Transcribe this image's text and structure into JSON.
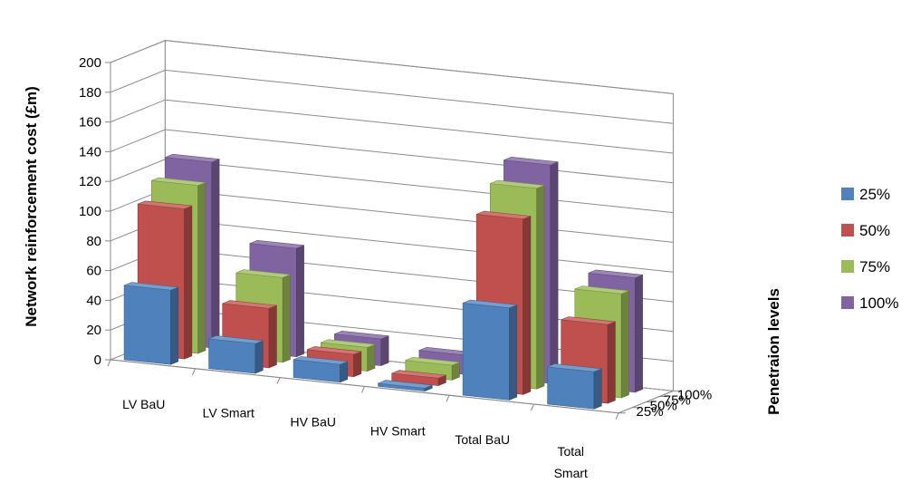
{
  "chart_data": {
    "type": "bar",
    "subtype": "3d-column",
    "title": "",
    "ylabel": "Network reinforcement cost (£m)",
    "zlabel": "Penetraion levels",
    "ylim": [
      0,
      200
    ],
    "yticks": [
      0,
      20,
      40,
      60,
      80,
      100,
      120,
      140,
      160,
      180,
      200
    ],
    "categories": [
      "LV BaU",
      "LV Smart",
      "HV BaU",
      "HV Smart",
      "Total BaU",
      "Total\nSmart"
    ],
    "depth_labels": [
      "25%",
      "50%",
      "75%",
      "100%"
    ],
    "legend_position": "right",
    "grid": true,
    "series": [
      {
        "name": "25%",
        "color": "#4F81BD",
        "values": [
          50,
          20,
          12,
          2,
          62,
          25
        ]
      },
      {
        "name": "50%",
        "color": "#C0504D",
        "values": [
          101,
          40,
          15,
          5,
          118,
          53
        ]
      },
      {
        "name": "75%",
        "color": "#9BBB59",
        "values": [
          113,
          57,
          16,
          10,
          135,
          70
        ]
      },
      {
        "name": "100%",
        "color": "#8064A2",
        "values": [
          125,
          73,
          18,
          13,
          147,
          77
        ]
      }
    ]
  }
}
